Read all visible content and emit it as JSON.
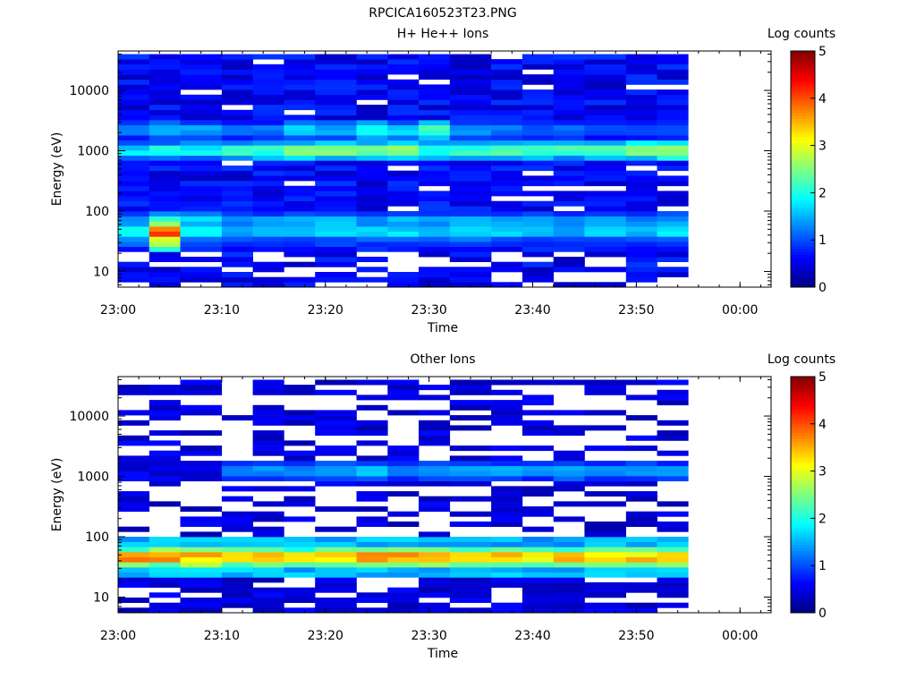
{
  "figure_title": "RPCICA160523T23.PNG",
  "chart_data": [
    {
      "type": "heatmap",
      "title": "H+ He++ Ions",
      "xlabel": "Time",
      "ylabel": "Energy (eV)",
      "x_ticks": [
        "23:00",
        "23:10",
        "23:20",
        "23:30",
        "23:40",
        "23:50",
        "00:00"
      ],
      "y_ticks": [
        "10",
        "100",
        "1000",
        "10000"
      ],
      "y_scale": "log",
      "ylim": [
        5.5,
        45000
      ],
      "xlim": [
        "23:00",
        "00:03"
      ],
      "colorbar": {
        "label": "Log counts",
        "ticks": [
          "0",
          "1",
          "2",
          "3",
          "4",
          "5"
        ],
        "range": [
          0,
          5
        ],
        "colormap": "jet"
      },
      "time_bins": [
        "23:00",
        "23:03",
        "23:06",
        "23:10",
        "23:13",
        "23:16",
        "23:19",
        "23:23",
        "23:26",
        "23:29",
        "23:32",
        "23:36",
        "23:39",
        "23:42",
        "23:45",
        "23:49",
        "23:52"
      ],
      "bin_end": "23:55",
      "bands": [
        {
          "energy": 2200,
          "level": [
            1.3,
            1.6,
            1.4,
            1.1,
            1.2,
            1.6,
            1.5,
            1.9,
            1.7,
            2.2,
            1.3,
            1.2,
            1.1,
            1.1,
            1.0,
            1.0,
            1.0
          ]
        },
        {
          "energy": 1050,
          "level": [
            1.7,
            1.9,
            1.8,
            2.0,
            2.1,
            2.4,
            2.5,
            2.4,
            2.5,
            2.0,
            2.2,
            2.2,
            2.1,
            2.1,
            2.2,
            2.6,
            2.7
          ]
        },
        {
          "energy": 65,
          "level": [
            1.4,
            2.0,
            1.6,
            1.3,
            1.4,
            1.4,
            1.5,
            1.4,
            1.5,
            1.4,
            1.5,
            1.4,
            1.4,
            1.3,
            1.4,
            1.3,
            1.4
          ]
        },
        {
          "energy": 45,
          "level": [
            1.8,
            3.9,
            1.9,
            1.5,
            1.6,
            1.6,
            1.7,
            1.6,
            1.7,
            1.6,
            1.7,
            1.6,
            1.6,
            1.5,
            1.6,
            1.5,
            1.7
          ]
        },
        {
          "energy": 32,
          "level": [
            1.1,
            2.8,
            1.0,
            0.8,
            0.9,
            0.9,
            0.9,
            0.8,
            0.9,
            0.9,
            0.9,
            0.8,
            0.8,
            0.8,
            0.9,
            0.8,
            0.9
          ]
        }
      ],
      "background_level": 0.6,
      "low_energy_cutoff": 30,
      "empty_fraction_high": 0.08,
      "empty_fraction_low": 0.35
    },
    {
      "type": "heatmap",
      "title": "Other Ions",
      "xlabel": "Time",
      "ylabel": "Energy (eV)",
      "x_ticks": [
        "23:00",
        "23:10",
        "23:20",
        "23:30",
        "23:40",
        "23:50",
        "00:00"
      ],
      "y_ticks": [
        "10",
        "100",
        "1000",
        "10000"
      ],
      "y_scale": "log",
      "ylim": [
        5.5,
        45000
      ],
      "xlim": [
        "23:00",
        "00:03"
      ],
      "colorbar": {
        "label": "Log counts",
        "ticks": [
          "0",
          "1",
          "2",
          "3",
          "4",
          "5"
        ],
        "range": [
          0,
          5
        ],
        "colormap": "jet"
      },
      "time_bins": [
        "23:00",
        "23:03",
        "23:06",
        "23:10",
        "23:13",
        "23:16",
        "23:19",
        "23:23",
        "23:26",
        "23:29",
        "23:32",
        "23:36",
        "23:39",
        "23:42",
        "23:45",
        "23:49",
        "23:52"
      ],
      "bin_end": "23:55",
      "bands": [
        {
          "energy": 1200,
          "level": [
            0.2,
            0.3,
            0.4,
            1.2,
            1.3,
            1.2,
            1.4,
            1.5,
            1.3,
            1.3,
            1.4,
            1.4,
            1.3,
            1.5,
            1.4,
            1.3,
            1.3
          ]
        },
        {
          "energy": 60,
          "level": [
            2.3,
            2.4,
            2.3,
            2.2,
            2.2,
            2.2,
            2.3,
            2.3,
            2.3,
            2.3,
            2.2,
            2.2,
            2.2,
            2.2,
            2.2,
            2.2,
            2.3
          ]
        },
        {
          "energy": 45,
          "level": [
            3.5,
            3.6,
            3.4,
            3.3,
            3.3,
            3.3,
            3.4,
            3.5,
            3.5,
            3.6,
            3.3,
            3.3,
            3.3,
            3.3,
            3.3,
            3.3,
            3.5
          ]
        },
        {
          "energy": 35,
          "level": [
            2.4,
            2.3,
            2.6,
            2.4,
            2.3,
            2.3,
            2.4,
            2.3,
            2.4,
            2.3,
            2.2,
            2.3,
            2.3,
            2.3,
            2.3,
            2.3,
            2.3
          ]
        }
      ],
      "background_level": 0.45,
      "low_energy_cutoff": 28,
      "empty_fraction_high": 0.55,
      "empty_fraction_low": 0.3
    }
  ]
}
